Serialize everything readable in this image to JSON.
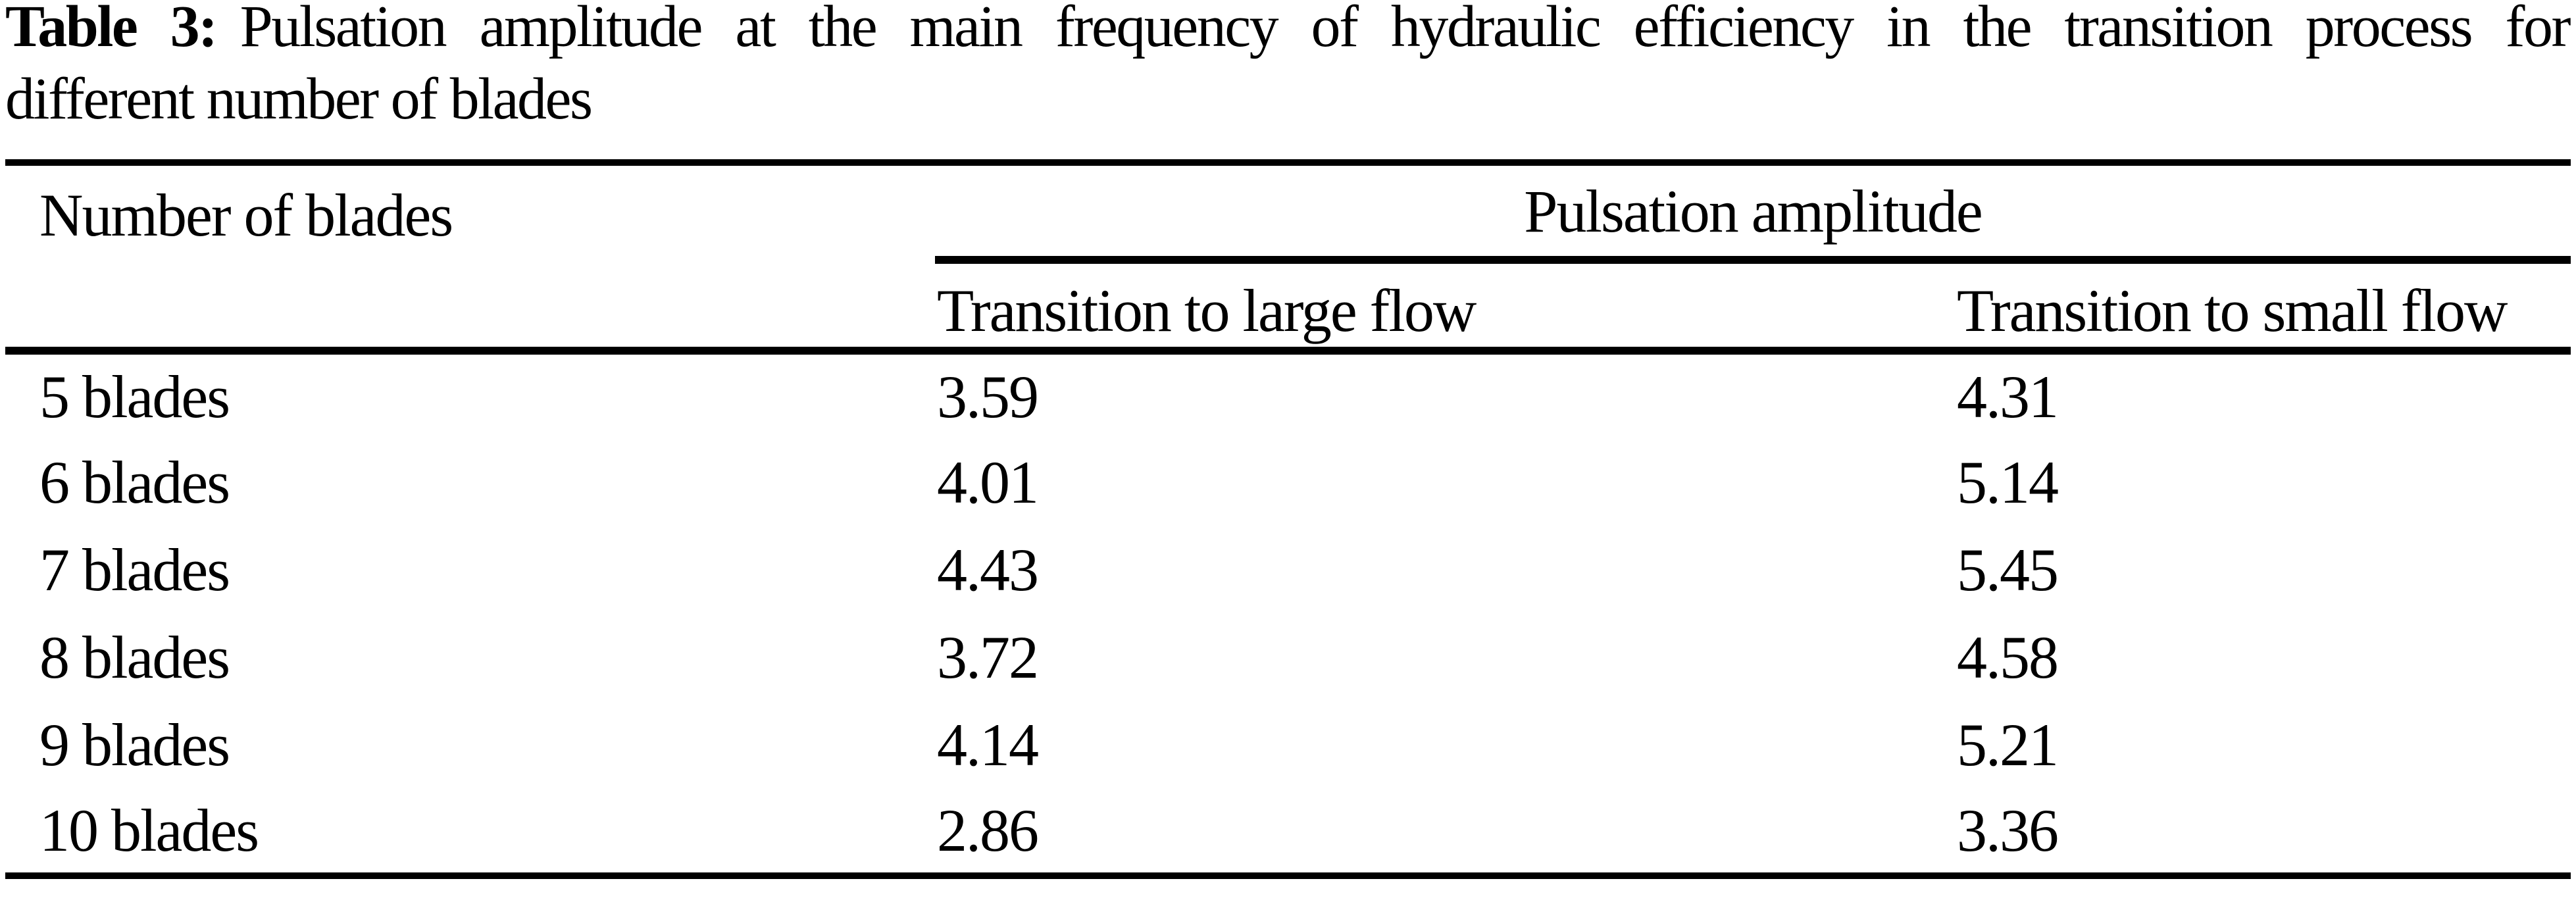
{
  "caption": {
    "label": "Table 3:",
    "line1_rest": "Pulsation amplitude at the main frequency of hydraulic efficiency in the transition process for",
    "line2": "different number of blades"
  },
  "table": {
    "col1_header": "Number of blades",
    "group_header": "Pulsation amplitude",
    "sub_headers": [
      "Transition to large flow",
      "Transition to small flow"
    ],
    "rows": [
      {
        "blades": "5 blades",
        "large_flow": "3.59",
        "small_flow": "4.31"
      },
      {
        "blades": "6 blades",
        "large_flow": "4.01",
        "small_flow": "5.14"
      },
      {
        "blades": "7 blades",
        "large_flow": "4.43",
        "small_flow": "5.45"
      },
      {
        "blades": "8 blades",
        "large_flow": "3.72",
        "small_flow": "4.58"
      },
      {
        "blades": "9 blades",
        "large_flow": "4.14",
        "small_flow": "5.21"
      },
      {
        "blades": "10 blades",
        "large_flow": "2.86",
        "small_flow": "3.36"
      }
    ]
  },
  "colors": {
    "text": "#000000",
    "background": "#ffffff",
    "rule": "#000000"
  }
}
